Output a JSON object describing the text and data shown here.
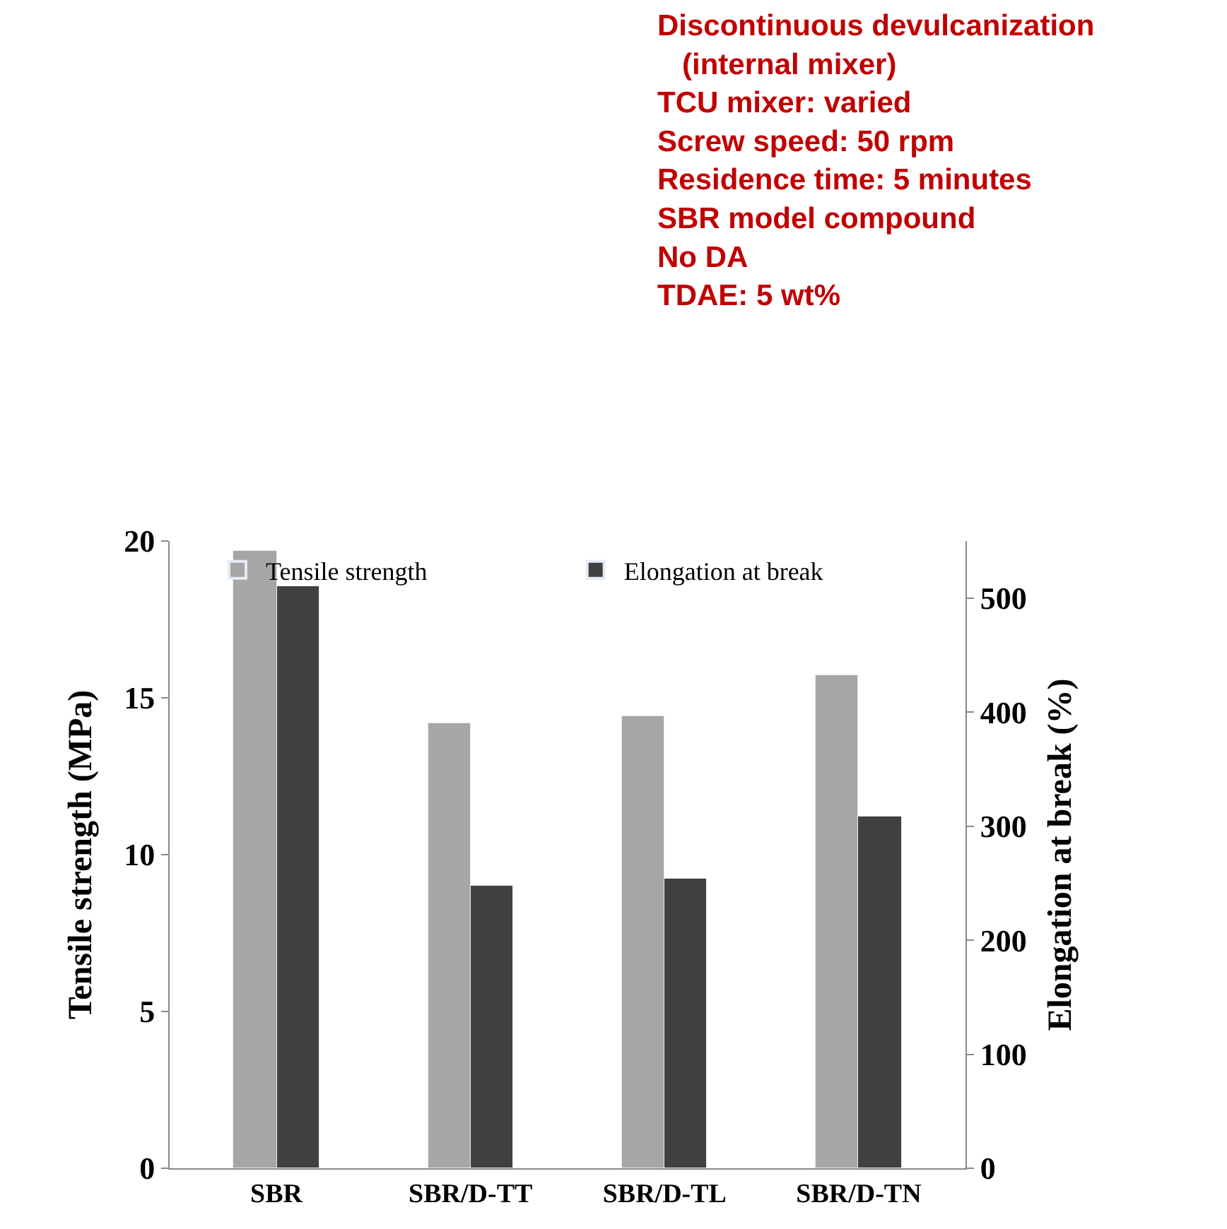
{
  "chart_data": {
    "type": "bar",
    "ylabel": "Tensile strength (MPa)",
    "y2label": "Elongation at break (%)",
    "categories": [
      "SBR",
      "SBR/D-TT",
      "SBR/D-TL",
      "SBR/D-TN"
    ],
    "series": [
      {
        "name": "Tensile strength",
        "color": "#a6a6a6",
        "values": [
          19.7,
          14.2,
          14.4,
          15.7
        ]
      },
      {
        "name": "Elongation at break",
        "color": "#404040",
        "values": [
          510,
          248,
          254,
          309
        ],
        "axis": "y2"
      }
    ],
    "ylim": [
      0,
      20
    ],
    "yticks": [
      0,
      5,
      10,
      15,
      20
    ],
    "y2lim": [
      0,
      550
    ],
    "y2ticks": [
      0,
      100,
      200,
      300,
      400,
      500
    ],
    "legend": "top",
    "annotations": [
      "Discontinuous devulcanization",
      "   (internal mixer)",
      "TCU mixer: varied",
      "Screw speed: 50 rpm",
      "Residence time: 5 minutes",
      "SBR model compound",
      "No DA",
      "TDAE: 5 wt%"
    ]
  }
}
